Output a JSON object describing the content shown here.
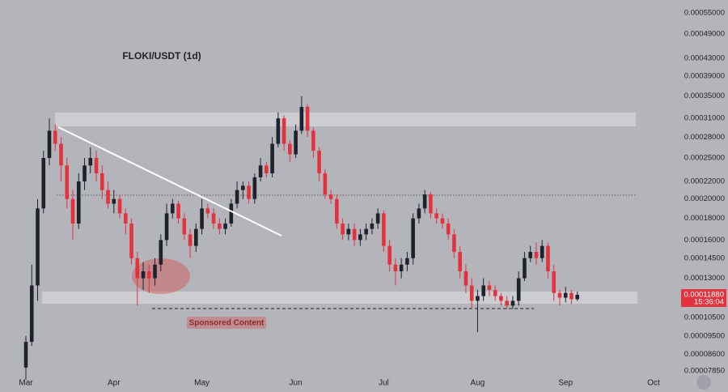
{
  "chart_data": {
    "type": "candlestick",
    "title": "FLOKI/USDT (1d)",
    "annotation": "Sponsored Content",
    "yscale": "log",
    "ylim": [
      7.45e-05,
      0.00059
    ],
    "yticks": [
      {
        "value": 0.00055,
        "label": "0.00055000"
      },
      {
        "value": 0.00049,
        "label": "0.00049000"
      },
      {
        "value": 0.00043,
        "label": "0.00043000"
      },
      {
        "value": 0.00039,
        "label": "0.00039000"
      },
      {
        "value": 0.00035,
        "label": "0.00035000"
      },
      {
        "value": 0.00031,
        "label": "0.00031000"
      },
      {
        "value": 0.00028,
        "label": "0.00028000"
      },
      {
        "value": 0.00025,
        "label": "0.00025000"
      },
      {
        "value": 0.00022,
        "label": "0.00022000"
      },
      {
        "value": 0.0002,
        "label": "0.00020000"
      },
      {
        "value": 0.00018,
        "label": "0.00018000"
      },
      {
        "value": 0.00016,
        "label": "0.00016000"
      },
      {
        "value": 0.000145,
        "label": "0.00014500"
      },
      {
        "value": 0.00013,
        "label": "0.00013000"
      },
      {
        "value": 0.000105,
        "label": "0.00010500"
      },
      {
        "value": 9.5e-05,
        "label": "0.00009500"
      },
      {
        "value": 8.6e-05,
        "label": "0.00008600"
      },
      {
        "value": 7.85e-05,
        "label": "0.00007850"
      }
    ],
    "last_price": {
      "value": 0.0001188,
      "label": "0.00011880"
    },
    "countdown": "15:36:04",
    "up_color": "#1e222d",
    "down_color": "#e3323e",
    "categories": [
      "Mar",
      null,
      null,
      null,
      null,
      null,
      null,
      null,
      null,
      null,
      null,
      null,
      null,
      null,
      null,
      "Apr",
      null,
      null,
      null,
      null,
      null,
      null,
      null,
      null,
      null,
      null,
      null,
      null,
      null,
      null,
      "May",
      null,
      null,
      null,
      null,
      null,
      null,
      null,
      null,
      null,
      null,
      null,
      null,
      null,
      null,
      null,
      "Jun",
      null,
      null,
      null,
      null,
      null,
      null,
      null,
      null,
      null,
      null,
      null,
      null,
      null,
      null,
      "Jul",
      null,
      null,
      null,
      null,
      null,
      null,
      null,
      null,
      null,
      null,
      null,
      null,
      null,
      null,
      null,
      "Aug",
      null,
      null,
      null,
      null,
      null,
      null,
      null,
      null,
      null,
      null,
      null,
      null,
      null,
      null,
      "Sep",
      null,
      null,
      null,
      null,
      null,
      null,
      null,
      null,
      null,
      null,
      null,
      null,
      null,
      null,
      "Oct"
    ],
    "open": [
      8e-05,
      9.2e-05,
      0.000125,
      0.00019,
      0.00025,
      0.00029,
      0.00027,
      0.00024,
      0.0002,
      0.000175,
      0.00022,
      0.00024,
      0.00025,
      0.00023,
      0.00021,
      0.000195,
      0.0002,
      0.000185,
      0.000175,
      0.000145,
      0.00013,
      0.000135,
      0.00013,
      0.00014,
      0.00016,
      0.000185,
      0.000195,
      0.00018,
      0.000165,
      0.000155,
      0.00017,
      0.00019,
      0.000185,
      0.000175,
      0.00017,
      0.000175,
      0.000195,
      0.00021,
      0.000215,
      0.0002,
      0.000225,
      0.00024,
      0.00023,
      0.00027,
      0.00031,
      0.00027,
      0.000255,
      0.00029,
      0.00033,
      0.00029,
      0.00026,
      0.00023,
      0.000205,
      0.0002,
      0.000175,
      0.000165,
      0.00017,
      0.00016,
      0.000165,
      0.00017,
      0.000175,
      0.000185,
      0.000155,
      0.00014,
      0.000135,
      0.00014,
      0.000145,
      0.00018,
      0.00019,
      0.000205,
      0.000185,
      0.00018,
      0.000175,
      0.000165,
      0.00015,
      0.000135,
      0.000125,
      0.000115,
      0.000118,
      0.000125,
      0.000122,
      0.000118,
      0.000115,
      0.000112,
      0.000115,
      0.00013,
      0.000145,
      0.00015,
      0.000145,
      0.000155,
      0.000135,
      0.00012,
      0.000117,
      0.00012,
      0.000116,
      null,
      null,
      null,
      null,
      null,
      null,
      null,
      null,
      null,
      null,
      null,
      null,
      null
    ],
    "high": [
      9.5e-05,
      0.00014,
      0.0002,
      0.00026,
      0.00031,
      0.0003,
      0.00028,
      0.00025,
      0.00021,
      0.00023,
      0.00025,
      0.000265,
      0.00026,
      0.00024,
      0.00022,
      0.00021,
      0.000205,
      0.00019,
      0.00018,
      0.00015,
      0.000142,
      0.00014,
      0.000145,
      0.000165,
      0.000195,
      0.0002,
      0.000198,
      0.000185,
      0.00017,
      0.000175,
      0.0002,
      0.000195,
      0.00019,
      0.00018,
      0.00018,
      0.0002,
      0.00022,
      0.00022,
      0.00022,
      0.00023,
      0.00025,
      0.000245,
      0.00028,
      0.00032,
      0.000315,
      0.000275,
      0.0003,
      0.00035,
      0.000335,
      0.000295,
      0.000265,
      0.000235,
      0.00021,
      0.000205,
      0.00018,
      0.000175,
      0.000175,
      0.00017,
      0.000175,
      0.00018,
      0.00019,
      0.000188,
      0.00016,
      0.000145,
      0.000145,
      0.00015,
      0.000185,
      0.000195,
      0.00021,
      0.000208,
      0.00019,
      0.000185,
      0.00018,
      0.00017,
      0.000155,
      0.00014,
      0.00013,
      0.000122,
      0.00013,
      0.000128,
      0.000125,
      0.00012,
      0.000118,
      0.000118,
      0.000135,
      0.00015,
      0.000155,
      0.000158,
      0.00016,
      0.000158,
      0.00014,
      0.000122,
      0.000124,
      0.000122,
      0.000121,
      null,
      null,
      null,
      null,
      null,
      null,
      null,
      null,
      null,
      null,
      null,
      null,
      null
    ],
    "low": [
      7.5e-05,
      9e-05,
      0.000115,
      0.000185,
      0.00024,
      0.00026,
      0.00022,
      0.00019,
      0.00016,
      0.00017,
      0.00021,
      0.00023,
      0.00022,
      0.0002,
      0.00019,
      0.000185,
      0.00018,
      0.000165,
      0.00014,
      0.000112,
      0.000122,
      0.00012,
      0.000125,
      0.000135,
      0.000155,
      0.00018,
      0.000175,
      0.00016,
      0.000145,
      0.00015,
      0.000165,
      0.00018,
      0.00017,
      0.000165,
      0.000165,
      0.000172,
      0.00019,
      0.0002,
      0.000195,
      0.000195,
      0.00022,
      0.000225,
      0.000225,
      0.000265,
      0.00026,
      0.000245,
      0.00025,
      0.000285,
      0.00028,
      0.00025,
      0.00022,
      0.0002,
      0.000195,
      0.00017,
      0.00016,
      0.00016,
      0.000155,
      0.000155,
      0.00016,
      0.000165,
      0.00017,
      0.00015,
      0.000135,
      0.000125,
      0.00013,
      0.000135,
      0.00014,
      0.000175,
      0.000185,
      0.00018,
      0.000175,
      0.00017,
      0.00016,
      0.000145,
      0.00013,
      0.00012,
      0.00011,
      9.7e-05,
      0.000115,
      0.000118,
      0.000115,
      0.000112,
      0.00011,
      0.00011,
      0.000112,
      0.000128,
      0.000142,
      0.00014,
      0.000142,
      0.00013,
      0.000115,
      0.000112,
      0.000114,
      0.000113,
      0.000115,
      null,
      null,
      null,
      null,
      null,
      null,
      null,
      null,
      null,
      null,
      null,
      null,
      null
    ],
    "close": [
      9.2e-05,
      0.000125,
      0.00019,
      0.00025,
      0.00029,
      0.00027,
      0.00024,
      0.0002,
      0.000175,
      0.00022,
      0.00024,
      0.00025,
      0.00023,
      0.00021,
      0.000195,
      0.0002,
      0.000185,
      0.000175,
      0.000145,
      0.00013,
      0.000135,
      0.00013,
      0.00014,
      0.00016,
      0.000185,
      0.000195,
      0.00018,
      0.000165,
      0.000155,
      0.00017,
      0.00019,
      0.000185,
      0.000175,
      0.00017,
      0.000175,
      0.000195,
      0.00021,
      0.000215,
      0.0002,
      0.000225,
      0.00024,
      0.00023,
      0.00027,
      0.00031,
      0.00027,
      0.000255,
      0.00029,
      0.00033,
      0.00029,
      0.00026,
      0.00023,
      0.000205,
      0.0002,
      0.000175,
      0.000165,
      0.00017,
      0.00016,
      0.000165,
      0.00017,
      0.000175,
      0.000185,
      0.000155,
      0.00014,
      0.000135,
      0.00014,
      0.000145,
      0.00018,
      0.00019,
      0.000205,
      0.000185,
      0.00018,
      0.000175,
      0.000165,
      0.00015,
      0.000135,
      0.000125,
      0.000115,
      0.000118,
      0.000125,
      0.000122,
      0.000118,
      0.000115,
      0.000112,
      0.000115,
      0.00013,
      0.000145,
      0.00015,
      0.000145,
      0.000155,
      0.000135,
      0.00012,
      0.000117,
      0.00012,
      0.000116,
      0.0001188,
      null,
      null,
      null,
      null,
      null,
      null,
      null,
      null,
      null,
      null,
      null,
      null,
      null
    ]
  }
}
